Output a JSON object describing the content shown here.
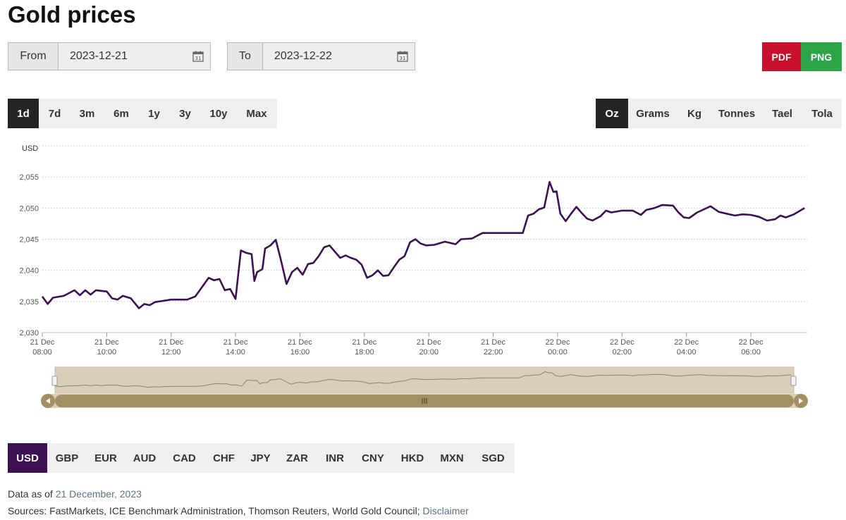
{
  "page": {
    "title": "Gold prices"
  },
  "date_range": {
    "from_label": "From",
    "from_value": "2023-12-21",
    "to_label": "To",
    "to_value": "2023-12-22"
  },
  "export": {
    "pdf": "PDF",
    "png": "PNG",
    "pdf_color": "#c8102e",
    "png_color": "#2ca548"
  },
  "range_tabs": [
    "1d",
    "7d",
    "3m",
    "6m",
    "1y",
    "3y",
    "10y",
    "Max"
  ],
  "range_active": "1d",
  "unit_tabs": [
    "Oz",
    "Grams",
    "Kg",
    "Tonnes",
    "Tael",
    "Tola"
  ],
  "unit_active": "Oz",
  "currency_tabs": [
    "USD",
    "GBP",
    "EUR",
    "AUD",
    "CAD",
    "CHF",
    "JPY",
    "ZAR",
    "INR",
    "CNY",
    "HKD",
    "MXN",
    "SGD"
  ],
  "currency_active": "USD",
  "footer": {
    "data_as_of_label": "Data as of",
    "data_as_of_date": "21 December, 2023",
    "sources_label": "Sources: FastMarkets, ICE Benchmark Administration, Thomson Reuters, World Gold Council;",
    "disclaimer_link": "Disclaimer"
  },
  "chart_data": {
    "type": "line",
    "ylabel": "USD",
    "ylim": [
      2030,
      2060
    ],
    "yticks": [
      "2,030",
      "2,035",
      "2,040",
      "2,045",
      "2,050",
      "2,055"
    ],
    "xlim": [
      "2023-12-21 08:00",
      "2023-12-22 07:45"
    ],
    "xticks": [
      {
        "day": "21 Dec",
        "time": "08:00"
      },
      {
        "day": "21 Dec",
        "time": "10:00"
      },
      {
        "day": "21 Dec",
        "time": "12:00"
      },
      {
        "day": "21 Dec",
        "time": "14:00"
      },
      {
        "day": "21 Dec",
        "time": "16:00"
      },
      {
        "day": "21 Dec",
        "time": "18:00"
      },
      {
        "day": "21 Dec",
        "time": "20:00"
      },
      {
        "day": "21 Dec",
        "time": "22:00"
      },
      {
        "day": "22 Dec",
        "time": "00:00"
      },
      {
        "day": "22 Dec",
        "time": "02:00"
      },
      {
        "day": "22 Dec",
        "time": "04:00"
      },
      {
        "day": "22 Dec",
        "time": "06:00"
      }
    ],
    "grid": true,
    "line_color": "#3c1053",
    "navigator": true,
    "points": [
      [
        "2023-12-21 08:00",
        2035.8
      ],
      [
        "2023-12-21 08:10",
        2034.6
      ],
      [
        "2023-12-21 08:20",
        2035.6
      ],
      [
        "2023-12-21 08:40",
        2035.9
      ],
      [
        "2023-12-21 09:00",
        2036.8
      ],
      [
        "2023-12-21 09:10",
        2036.0
      ],
      [
        "2023-12-21 09:20",
        2036.8
      ],
      [
        "2023-12-21 09:30",
        2036.1
      ],
      [
        "2023-12-21 09:40",
        2036.8
      ],
      [
        "2023-12-21 10:00",
        2036.6
      ],
      [
        "2023-12-21 10:10",
        2035.5
      ],
      [
        "2023-12-21 10:20",
        2035.3
      ],
      [
        "2023-12-21 10:30",
        2035.9
      ],
      [
        "2023-12-21 10:45",
        2035.5
      ],
      [
        "2023-12-21 11:00",
        2033.9
      ],
      [
        "2023-12-21 11:10",
        2034.6
      ],
      [
        "2023-12-21 11:20",
        2034.4
      ],
      [
        "2023-12-21 11:30",
        2034.9
      ],
      [
        "2023-12-21 11:45",
        2035.1
      ],
      [
        "2023-12-21 12:00",
        2035.3
      ],
      [
        "2023-12-21 12:30",
        2035.3
      ],
      [
        "2023-12-21 12:45",
        2035.8
      ],
      [
        "2023-12-21 13:00",
        2037.6
      ],
      [
        "2023-12-21 13:10",
        2038.8
      ],
      [
        "2023-12-21 13:20",
        2038.4
      ],
      [
        "2023-12-21 13:30",
        2038.6
      ],
      [
        "2023-12-21 13:40",
        2036.8
      ],
      [
        "2023-12-21 13:50",
        2037.0
      ],
      [
        "2023-12-21 14:00",
        2035.4
      ],
      [
        "2023-12-21 14:10",
        2043.2
      ],
      [
        "2023-12-21 14:20",
        2042.8
      ],
      [
        "2023-12-21 14:30",
        2042.6
      ],
      [
        "2023-12-21 14:35",
        2038.3
      ],
      [
        "2023-12-21 14:40",
        2039.7
      ],
      [
        "2023-12-21 14:50",
        2040.2
      ],
      [
        "2023-12-21 14:55",
        2043.5
      ],
      [
        "2023-12-21 15:05",
        2044.0
      ],
      [
        "2023-12-21 15:15",
        2044.9
      ],
      [
        "2023-12-21 15:25",
        2041.5
      ],
      [
        "2023-12-21 15:35",
        2037.8
      ],
      [
        "2023-12-21 15:45",
        2039.7
      ],
      [
        "2023-12-21 15:55",
        2040.4
      ],
      [
        "2023-12-21 16:05",
        2039.3
      ],
      [
        "2023-12-21 16:15",
        2041.0
      ],
      [
        "2023-12-21 16:25",
        2041.2
      ],
      [
        "2023-12-21 16:35",
        2042.3
      ],
      [
        "2023-12-21 16:45",
        2043.7
      ],
      [
        "2023-12-21 16:55",
        2044.0
      ],
      [
        "2023-12-21 17:05",
        2043.0
      ],
      [
        "2023-12-21 17:15",
        2042.0
      ],
      [
        "2023-12-21 17:25",
        2042.4
      ],
      [
        "2023-12-21 17:35",
        2042.0
      ],
      [
        "2023-12-21 17:45",
        2041.7
      ],
      [
        "2023-12-21 17:55",
        2040.9
      ],
      [
        "2023-12-21 18:05",
        2038.8
      ],
      [
        "2023-12-21 18:15",
        2039.2
      ],
      [
        "2023-12-21 18:25",
        2040.0
      ],
      [
        "2023-12-21 18:35",
        2039.1
      ],
      [
        "2023-12-21 18:45",
        2039.2
      ],
      [
        "2023-12-21 18:55",
        2040.5
      ],
      [
        "2023-12-21 19:05",
        2041.7
      ],
      [
        "2023-12-21 19:15",
        2042.3
      ],
      [
        "2023-12-21 19:25",
        2044.5
      ],
      [
        "2023-12-21 19:35",
        2045.0
      ],
      [
        "2023-12-21 19:45",
        2044.3
      ],
      [
        "2023-12-21 19:55",
        2044.0
      ],
      [
        "2023-12-21 20:10",
        2044.1
      ],
      [
        "2023-12-21 20:30",
        2044.6
      ],
      [
        "2023-12-21 20:50",
        2044.2
      ],
      [
        "2023-12-21 21:00",
        2045.0
      ],
      [
        "2023-12-21 21:20",
        2045.1
      ],
      [
        "2023-12-21 21:40",
        2046.0
      ],
      [
        "2023-12-21 22:00",
        2046.0
      ],
      [
        "2023-12-21 22:30",
        2046.0
      ],
      [
        "2023-12-21 22:55",
        2046.0
      ],
      [
        "2023-12-21 23:05",
        2048.8
      ],
      [
        "2023-12-21 23:15",
        2049.1
      ],
      [
        "2023-12-21 23:25",
        2049.8
      ],
      [
        "2023-12-21 23:35",
        2050.1
      ],
      [
        "2023-12-21 23:45",
        2054.2
      ],
      [
        "2023-12-21 23:52",
        2052.6
      ],
      [
        "2023-12-21 23:58",
        2052.7
      ],
      [
        "2023-12-22 00:05",
        2049.1
      ],
      [
        "2023-12-22 00:15",
        2047.9
      ],
      [
        "2023-12-22 00:25",
        2049.1
      ],
      [
        "2023-12-22 00:35",
        2050.2
      ],
      [
        "2023-12-22 00:45",
        2049.2
      ],
      [
        "2023-12-22 00:55",
        2048.3
      ],
      [
        "2023-12-22 01:05",
        2048.0
      ],
      [
        "2023-12-22 01:20",
        2048.7
      ],
      [
        "2023-12-22 01:30",
        2049.6
      ],
      [
        "2023-12-22 01:40",
        2049.3
      ],
      [
        "2023-12-22 02:00",
        2049.6
      ],
      [
        "2023-12-22 02:20",
        2049.6
      ],
      [
        "2023-12-22 02:35",
        2048.9
      ],
      [
        "2023-12-22 02:45",
        2049.7
      ],
      [
        "2023-12-22 03:00",
        2050.0
      ],
      [
        "2023-12-22 03:15",
        2050.5
      ],
      [
        "2023-12-22 03:35",
        2050.4
      ],
      [
        "2023-12-22 03:45",
        2049.3
      ],
      [
        "2023-12-22 03:55",
        2048.5
      ],
      [
        "2023-12-22 04:05",
        2048.4
      ],
      [
        "2023-12-22 04:20",
        2049.3
      ],
      [
        "2023-12-22 04:30",
        2049.7
      ],
      [
        "2023-12-22 04:45",
        2050.3
      ],
      [
        "2023-12-22 05:00",
        2049.4
      ],
      [
        "2023-12-22 05:15",
        2049.1
      ],
      [
        "2023-12-22 05:30",
        2048.8
      ],
      [
        "2023-12-22 05:45",
        2049.0
      ],
      [
        "2023-12-22 06:00",
        2048.9
      ],
      [
        "2023-12-22 06:15",
        2048.6
      ],
      [
        "2023-12-22 06:30",
        2048.0
      ],
      [
        "2023-12-22 06:45",
        2048.2
      ],
      [
        "2023-12-22 06:55",
        2048.8
      ],
      [
        "2023-12-22 07:05",
        2048.5
      ],
      [
        "2023-12-22 07:20",
        2049.0
      ],
      [
        "2023-12-22 07:40",
        2050.0
      ]
    ]
  }
}
